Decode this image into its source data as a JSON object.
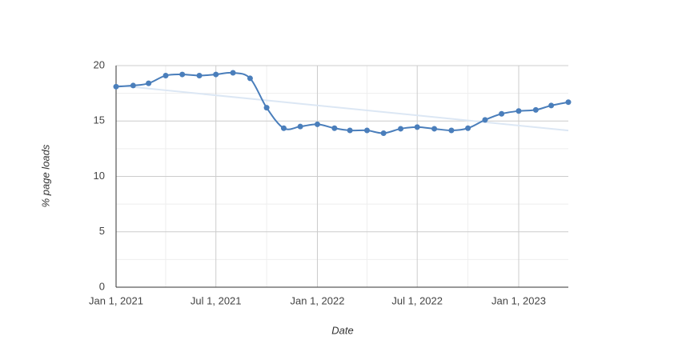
{
  "chart_data": {
    "type": "line",
    "x_label": "Date",
    "y_label": "% page loads",
    "x": [
      "2021-01-01",
      "2021-02-01",
      "2021-03-01",
      "2021-04-01",
      "2021-05-01",
      "2021-06-01",
      "2021-07-01",
      "2021-08-01",
      "2021-09-01",
      "2021-10-01",
      "2021-11-01",
      "2021-12-01",
      "2022-01-01",
      "2022-02-01",
      "2022-03-01",
      "2022-04-01",
      "2022-05-01",
      "2022-06-01",
      "2022-07-01",
      "2022-08-01",
      "2022-09-01",
      "2022-10-01",
      "2022-11-01",
      "2022-12-01",
      "2023-01-01",
      "2023-02-01",
      "2023-03-01",
      "2023-04-01"
    ],
    "series": [
      {
        "color": "#4a7ebb",
        "values": [
          18.1,
          18.2,
          18.4,
          19.1,
          19.2,
          19.1,
          19.2,
          19.35,
          18.85,
          16.2,
          14.35,
          14.5,
          14.7,
          14.35,
          14.15,
          14.15,
          13.9,
          14.3,
          14.45,
          14.3,
          14.15,
          14.35,
          15.1,
          15.65,
          15.9,
          16.0,
          16.4,
          16.7
        ]
      }
    ],
    "trendline": true,
    "trendline_color": "#dce7f4",
    "smooth": true,
    "xlim": [
      "2021-01-01",
      "2023-04-01"
    ],
    "xticks": [
      {
        "value": "2021-01-01",
        "label": "Jan 1, 2021"
      },
      {
        "value": "2021-07-01",
        "label": "Jul 1, 2021"
      },
      {
        "value": "2022-01-01",
        "label": "Jan 1, 2022"
      },
      {
        "value": "2022-07-01",
        "label": "Jul 1, 2022"
      },
      {
        "value": "2023-01-01",
        "label": "Jan 1, 2023"
      }
    ],
    "x_minor_ticks": [
      "2021-04-01",
      "2021-10-01",
      "2022-04-01",
      "2022-10-01"
    ],
    "ylim": [
      0,
      20
    ],
    "yticks": [
      0,
      5,
      10,
      15,
      20
    ],
    "y_minor_ticks": [
      2.5,
      7.5,
      12.5,
      17.5
    ],
    "grid": true
  }
}
